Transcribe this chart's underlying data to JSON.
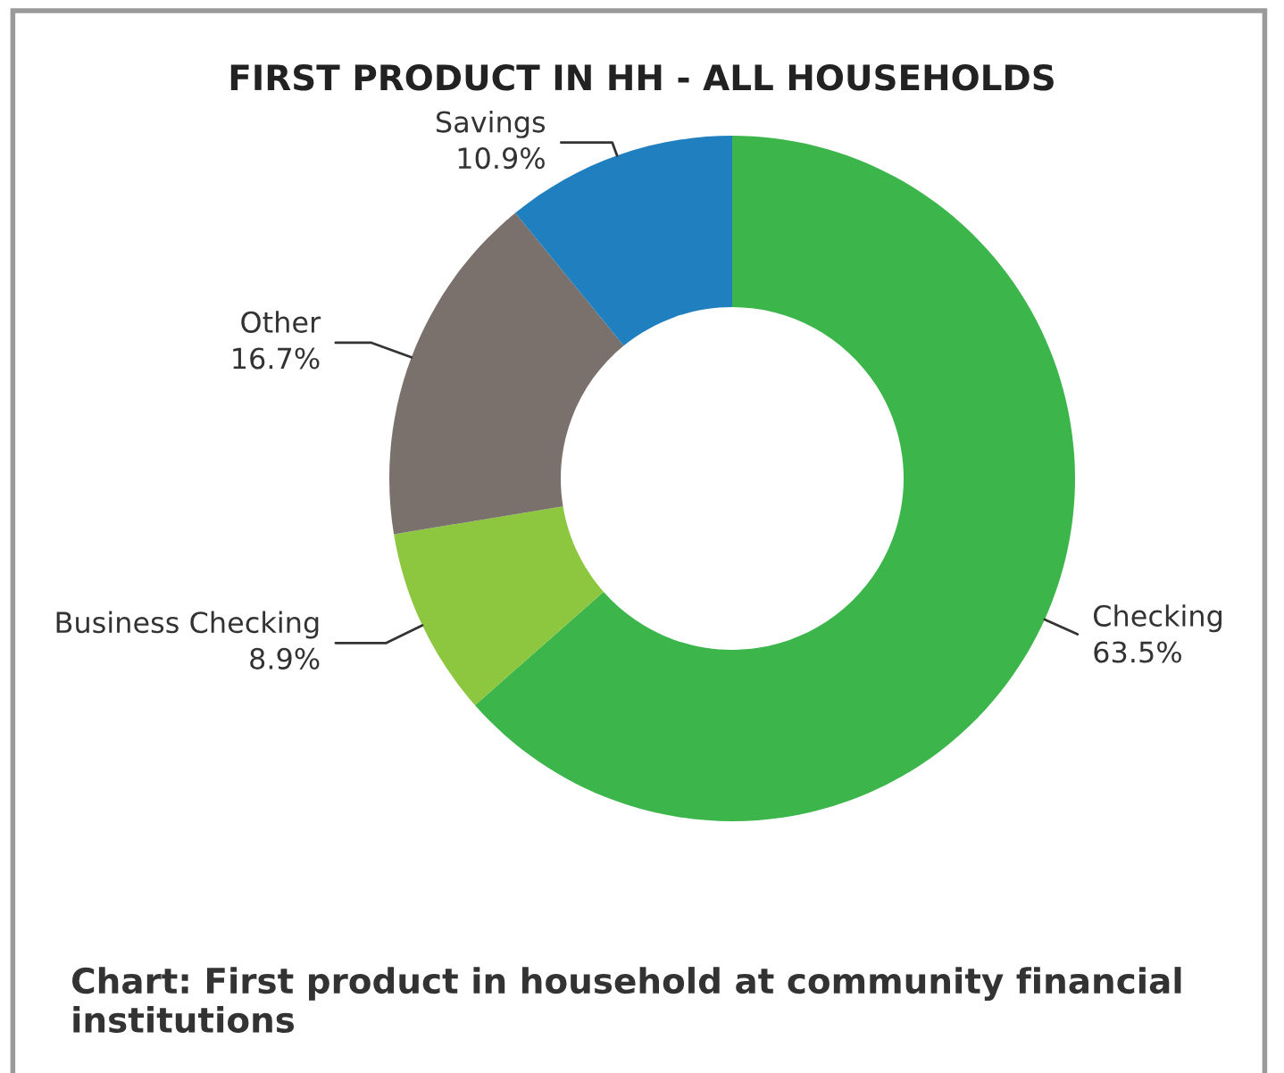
{
  "chart_data": {
    "type": "donut",
    "title": "FIRST PRODUCT IN HH - ALL HOUSEHOLDS",
    "categories": [
      "Checking",
      "Business Checking",
      "Other",
      "Savings"
    ],
    "values": [
      63.5,
      8.9,
      16.7,
      10.9
    ],
    "colors": [
      "#3cb54a",
      "#8dc63f",
      "#7a716d",
      "#1f7fbf"
    ],
    "value_labels": [
      "63.5%",
      "8.9%",
      "16.7%",
      "10.9%"
    ],
    "annotations": [
      "Chart: First product in household at community financial institutions"
    ]
  }
}
